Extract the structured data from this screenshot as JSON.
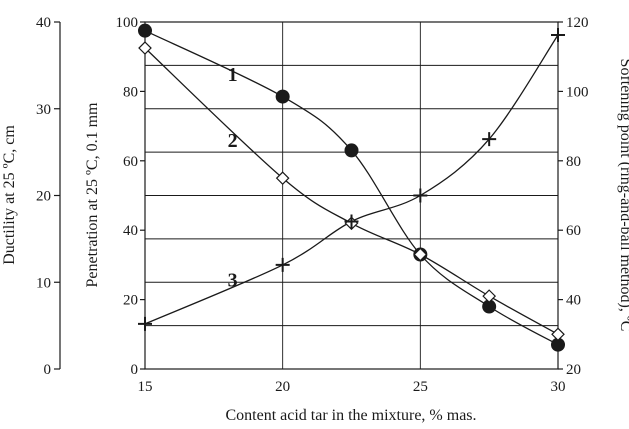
{
  "chart_data": {
    "type": "line",
    "xlabel": "Content acid tar in the mixture, % mas.",
    "xlim": [
      15,
      30
    ],
    "x_ticks": [
      "15",
      "20",
      "25",
      "30"
    ],
    "axes": {
      "ductility": {
        "label": "Ductility at 25 ºC, cm",
        "range": [
          0,
          40
        ],
        "ticks": [
          "0",
          "10",
          "20",
          "30",
          "40"
        ]
      },
      "penetration": {
        "label": "Penetration at 25 ºC, 0.1 mm",
        "range": [
          0,
          100
        ],
        "ticks": [
          "0",
          "20",
          "40",
          "60",
          "80",
          "100"
        ]
      },
      "softening": {
        "label": "Softening point (ring-and-ball method), ºC",
        "range": [
          20,
          120
        ],
        "ticks": [
          "20",
          "40",
          "60",
          "80",
          "100",
          "120"
        ]
      }
    },
    "grid": true,
    "series": [
      {
        "name": "1",
        "axis": "penetration",
        "marker": "filled-circle",
        "x": [
          15,
          20,
          22.5,
          25,
          27.5,
          30
        ],
        "y": [
          97.5,
          78.5,
          63,
          33,
          18,
          7
        ],
        "label_at": [
          18,
          83
        ]
      },
      {
        "name": "2",
        "axis": "penetration",
        "marker": "open-diamond",
        "x": [
          15,
          20,
          22.5,
          25,
          27.5,
          30
        ],
        "y": [
          92.5,
          55,
          42,
          33,
          21,
          10
        ],
        "label_at": [
          18,
          64
        ]
      },
      {
        "name": "3",
        "axis": "ductility",
        "marker": "plus",
        "x": [
          15,
          20,
          22.5,
          25,
          27.5,
          30
        ],
        "y": [
          5.2,
          12,
          17,
          20,
          26.5,
          38.5
        ],
        "label_at": [
          18,
          9.5
        ]
      }
    ]
  }
}
